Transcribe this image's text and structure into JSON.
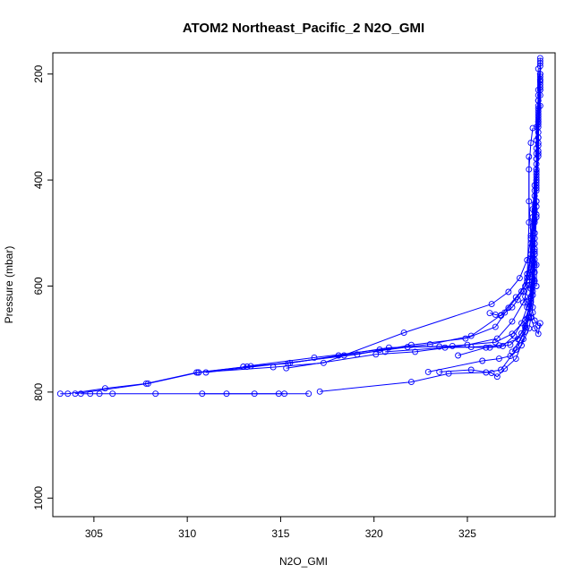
{
  "chart_data": {
    "type": "scatter",
    "title": "ATOM2 Northeast_Pacific_2 N2O_GMI",
    "xlabel": "N2O_GMI",
    "ylabel": "Pressure (mbar)",
    "xlim": [
      302.8,
      329.7
    ],
    "ylim": [
      1035,
      160
    ],
    "y_reversed": true,
    "x_ticks": [
      305,
      310,
      315,
      320,
      325
    ],
    "y_ticks": [
      200,
      400,
      600,
      800,
      1000
    ],
    "grid": false,
    "legend": "none",
    "series": [
      {
        "color": "#0000ff",
        "marker": "open-circle",
        "profiles": [
          [
            [
              303.2,
              803
            ],
            [
              303.6,
              803
            ],
            [
              305.6,
              793
            ],
            [
              307.8,
              784
            ],
            [
              310.5,
              763
            ],
            [
              313.4,
              751
            ],
            [
              315.5,
              745
            ],
            [
              318.4,
              731
            ],
            [
              321.8,
              715
            ],
            [
              324.2,
              713
            ],
            [
              326.5,
              706
            ],
            [
              327.4,
              690
            ],
            [
              328.1,
              664
            ],
            [
              328.4,
              628
            ],
            [
              328.5,
              590
            ],
            [
              328.6,
              540
            ],
            [
              328.6,
              480
            ],
            [
              328.7,
              420
            ],
            [
              328.7,
              360
            ],
            [
              328.8,
              300
            ],
            [
              328.8,
              250
            ],
            [
              328.9,
              200
            ],
            [
              328.9,
              170
            ]
          ],
          [
            [
              304.0,
              803
            ],
            [
              307.9,
              784
            ],
            [
              310.6,
              763
            ],
            [
              313.2,
              752
            ],
            [
              315.4,
              746
            ],
            [
              318.1,
              731
            ],
            [
              320.8,
              716
            ],
            [
              323.5,
              714
            ],
            [
              326.2,
              716
            ],
            [
              327.3,
              711
            ],
            [
              327.9,
              689
            ],
            [
              328.2,
              661
            ],
            [
              328.4,
              620
            ],
            [
              328.5,
              570
            ],
            [
              328.6,
              520
            ],
            [
              328.6,
              460
            ],
            [
              328.7,
              400
            ],
            [
              328.7,
              340
            ],
            [
              328.8,
              280
            ],
            [
              328.8,
              230
            ],
            [
              328.9,
              185
            ]
          ],
          [
            [
              317.1,
              799
            ],
            [
              322.0,
              781
            ],
            [
              324.0,
              765
            ],
            [
              326.0,
              763
            ],
            [
              326.8,
              758
            ],
            [
              327.6,
              720
            ],
            [
              328.1,
              679
            ],
            [
              328.3,
              640
            ],
            [
              328.5,
              600
            ],
            [
              328.6,
              550
            ],
            [
              328.6,
              500
            ],
            [
              328.7,
              440
            ],
            [
              328.7,
              380
            ],
            [
              328.8,
              320
            ],
            [
              328.8,
              260
            ],
            [
              328.9,
              210
            ]
          ],
          [
            [
              315.2,
              803
            ],
            [
              308.3,
              803
            ],
            [
              306.0,
              803
            ],
            [
              305.3,
              803
            ],
            [
              304.8,
              803
            ],
            [
              304.3,
              803
            ]
          ],
          [
            [
              310.8,
              803
            ],
            [
              312.1,
              803
            ],
            [
              313.6,
              803
            ],
            [
              314.9,
              803
            ],
            [
              316.5,
              803
            ]
          ],
          [
            [
              315.3,
              755
            ],
            [
              320.1,
              729
            ],
            [
              322.2,
              724
            ],
            [
              325.0,
              711
            ],
            [
              326.6,
              699
            ],
            [
              327.4,
              667
            ],
            [
              328.0,
              631
            ],
            [
              328.3,
              598
            ],
            [
              328.5,
              551
            ],
            [
              328.6,
              500
            ],
            [
              328.7,
              450
            ],
            [
              328.7,
              390
            ],
            [
              328.8,
              330
            ],
            [
              328.8,
              270
            ],
            [
              328.9,
              215
            ]
          ],
          [
            [
              310.6,
              763
            ],
            [
              314.6,
              753
            ],
            [
              317.3,
              745
            ],
            [
              321.6,
              688
            ],
            [
              326.3,
              634
            ],
            [
              327.2,
              611
            ],
            [
              327.8,
              585
            ],
            [
              328.2,
              551
            ],
            [
              328.4,
              510
            ],
            [
              328.5,
              470
            ],
            [
              328.6,
              420
            ],
            [
              328.7,
              360
            ],
            [
              328.7,
              300
            ],
            [
              328.8,
              240
            ],
            [
              328.8,
              190
            ]
          ],
          [
            [
              311.0,
              763
            ],
            [
              319.1,
              729
            ],
            [
              322.0,
              711
            ],
            [
              324.9,
              699
            ],
            [
              326.5,
              677
            ],
            [
              327.2,
              641
            ],
            [
              327.9,
              610
            ],
            [
              328.2,
              577
            ],
            [
              328.4,
              540
            ],
            [
              328.5,
              490
            ],
            [
              328.6,
              430
            ],
            [
              328.7,
              370
            ],
            [
              328.8,
              310
            ],
            [
              328.8,
              250
            ],
            [
              328.9,
              200
            ]
          ],
          [
            [
              313.0,
              752
            ],
            [
              316.8,
              735
            ],
            [
              320.3,
              720
            ],
            [
              323.0,
              710
            ],
            [
              325.2,
              694
            ],
            [
              326.8,
              655
            ],
            [
              327.6,
              621
            ],
            [
              328.1,
              600
            ],
            [
              328.4,
              570
            ],
            [
              328.5,
              520
            ],
            [
              328.6,
              460
            ],
            [
              328.7,
              400
            ],
            [
              328.7,
              350
            ],
            [
              328.8,
              290
            ],
            [
              328.9,
              230
            ],
            [
              328.9,
              175
            ]
          ],
          [
            [
              322.9,
              762
            ],
            [
              325.8,
              741
            ],
            [
              326.7,
              737
            ],
            [
              327.3,
              732
            ],
            [
              327.9,
              712
            ],
            [
              328.3,
              680
            ],
            [
              328.5,
              640
            ],
            [
              328.6,
              590
            ],
            [
              328.6,
              530
            ],
            [
              328.7,
              470
            ],
            [
              328.7,
              410
            ],
            [
              328.8,
              350
            ],
            [
              328.8,
              290
            ],
            [
              328.9,
              230
            ]
          ],
          [
            [
              323.5,
              762
            ],
            [
              325.2,
              758
            ],
            [
              326.3,
              764
            ],
            [
              326.6,
              771
            ],
            [
              327.0,
              756
            ],
            [
              327.6,
              737
            ],
            [
              328.0,
              700
            ],
            [
              328.3,
              660
            ],
            [
              328.5,
              610
            ],
            [
              328.6,
              560
            ],
            [
              328.6,
              500
            ],
            [
              328.7,
              440
            ],
            [
              328.7,
              380
            ],
            [
              328.8,
              320
            ],
            [
              328.9,
              260
            ],
            [
              328.9,
              205
            ]
          ],
          [
            [
              324.5,
              731
            ],
            [
              326.0,
              716
            ],
            [
              326.9,
              713
            ],
            [
              327.5,
              694
            ],
            [
              327.9,
              670
            ],
            [
              328.2,
              640
            ],
            [
              328.4,
              605
            ],
            [
              328.5,
              560
            ],
            [
              328.6,
              510
            ],
            [
              328.6,
              455
            ],
            [
              328.7,
              395
            ],
            [
              328.8,
              335
            ],
            [
              328.8,
              275
            ],
            [
              328.9,
              220
            ]
          ],
          [
            [
              320.6,
              724
            ],
            [
              323.8,
              716
            ],
            [
              325.2,
              715
            ],
            [
              326.7,
              712
            ],
            [
              327.7,
              700
            ],
            [
              328.1,
              675
            ],
            [
              328.4,
              631
            ],
            [
              328.5,
              585
            ],
            [
              328.6,
              535
            ],
            [
              328.6,
              475
            ],
            [
              328.7,
              415
            ],
            [
              328.8,
              355
            ],
            [
              328.8,
              295
            ],
            [
              328.9,
              240
            ]
          ],
          [
            [
              326.2,
              651
            ],
            [
              326.5,
              654
            ],
            [
              326.8,
              656
            ],
            [
              327.0,
              650
            ],
            [
              327.4,
              640
            ],
            [
              327.7,
              626
            ],
            [
              328.0,
              610
            ],
            [
              328.2,
              584
            ],
            [
              328.4,
              548
            ],
            [
              328.5,
              505
            ],
            [
              328.6,
              445
            ],
            [
              328.7,
              385
            ],
            [
              328.7,
              325
            ],
            [
              328.8,
              265
            ],
            [
              328.9,
              212
            ]
          ],
          [
            [
              327.4,
              724
            ],
            [
              327.8,
              702
            ],
            [
              328.1,
              686
            ],
            [
              328.3,
              658
            ],
            [
              328.5,
              617
            ],
            [
              328.6,
              574
            ],
            [
              328.6,
              520
            ],
            [
              328.7,
              465
            ],
            [
              328.7,
              405
            ],
            [
              328.8,
              345
            ],
            [
              328.8,
              285
            ],
            [
              328.9,
              225
            ],
            [
              328.9,
              180
            ]
          ],
          [
            [
              328.3,
              356
            ],
            [
              328.3,
              480
            ],
            [
              328.2,
              590
            ],
            [
              328.1,
              620
            ],
            [
              328.2,
              630
            ],
            [
              328.4,
              660
            ],
            [
              328.6,
              680
            ],
            [
              328.8,
              690
            ],
            [
              328.9,
              670
            ]
          ],
          [
            [
              328.5,
              302
            ],
            [
              328.4,
              330
            ],
            [
              328.3,
              380
            ],
            [
              328.3,
              440
            ],
            [
              328.4,
              505
            ],
            [
              328.6,
              540
            ],
            [
              328.7,
              560
            ],
            [
              328.7,
              600
            ]
          ],
          [
            [
              328.6,
              410
            ],
            [
              328.5,
              455
            ],
            [
              328.4,
              520
            ],
            [
              328.3,
              575
            ],
            [
              328.4,
              625
            ],
            [
              328.5,
              650
            ],
            [
              328.6,
              665
            ],
            [
              328.8,
              675
            ]
          ]
        ]
      }
    ]
  }
}
